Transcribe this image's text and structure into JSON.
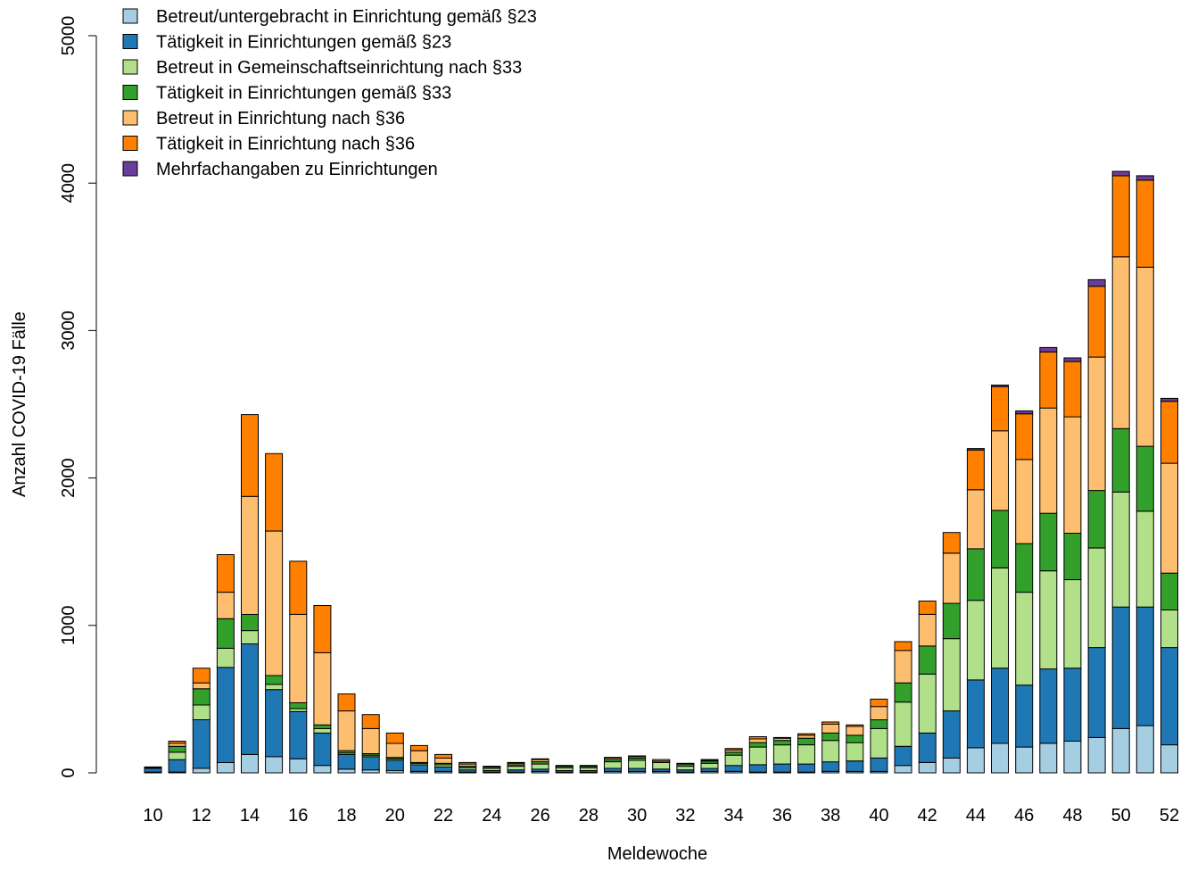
{
  "chart_data": {
    "type": "bar",
    "stacked": true,
    "xlabel": "Meldewoche",
    "ylabel": "Anzahl COVID-19 Fälle",
    "ylim": [
      0,
      5000
    ],
    "y_ticks": [
      0,
      1000,
      2000,
      3000,
      4000,
      5000
    ],
    "x_tick_labels": [
      "10",
      "12",
      "14",
      "16",
      "18",
      "20",
      "22",
      "24",
      "26",
      "28",
      "30",
      "32",
      "34",
      "36",
      "38",
      "40",
      "42",
      "44",
      "46",
      "48",
      "50",
      "52"
    ],
    "legend_position": "top-left",
    "categories": [
      10,
      11,
      12,
      13,
      14,
      15,
      16,
      17,
      18,
      19,
      20,
      21,
      22,
      23,
      24,
      25,
      26,
      27,
      28,
      29,
      30,
      31,
      32,
      33,
      34,
      35,
      36,
      37,
      38,
      39,
      40,
      41,
      42,
      43,
      44,
      45,
      46,
      47,
      48,
      49,
      50,
      51,
      52
    ],
    "series": [
      {
        "name": "Betreut/untergebracht in Einrichtung gemäß §23",
        "color": "#a6cee3",
        "values": [
          5,
          5,
          30,
          70,
          125,
          110,
          95,
          50,
          25,
          20,
          15,
          10,
          10,
          5,
          5,
          5,
          10,
          5,
          5,
          10,
          10,
          10,
          5,
          10,
          10,
          5,
          5,
          5,
          10,
          10,
          10,
          50,
          70,
          100,
          170,
          200,
          175,
          200,
          215,
          240,
          300,
          320,
          190
        ]
      },
      {
        "name": "Tätigkeit in Einrichtungen gemäß §23",
        "color": "#1f78b4",
        "values": [
          25,
          85,
          330,
          645,
          750,
          455,
          320,
          220,
          100,
          90,
          70,
          45,
          30,
          15,
          10,
          15,
          15,
          10,
          10,
          20,
          20,
          15,
          15,
          20,
          40,
          50,
          55,
          55,
          65,
          70,
          90,
          130,
          200,
          320,
          460,
          510,
          420,
          505,
          495,
          610,
          825,
          805,
          660
        ]
      },
      {
        "name": "Betreut in Gemeinschaftseinrichtung nach §33",
        "color": "#b2df8a",
        "values": [
          5,
          50,
          100,
          130,
          90,
          35,
          20,
          30,
          10,
          10,
          10,
          10,
          15,
          15,
          15,
          25,
          35,
          20,
          20,
          45,
          55,
          45,
          25,
          35,
          70,
          120,
          130,
          130,
          145,
          125,
          200,
          300,
          400,
          490,
          540,
          680,
          630,
          665,
          600,
          675,
          780,
          650,
          255
        ]
      },
      {
        "name": "Tätigkeit in Einrichtungen gemäß §33",
        "color": "#33a02c",
        "values": [
          5,
          40,
          110,
          200,
          110,
          60,
          40,
          25,
          15,
          10,
          10,
          5,
          10,
          10,
          10,
          10,
          15,
          10,
          10,
          15,
          15,
          10,
          15,
          15,
          20,
          30,
          30,
          45,
          50,
          50,
          60,
          130,
          190,
          240,
          350,
          390,
          330,
          390,
          315,
          390,
          430,
          440,
          250
        ]
      },
      {
        "name": "Betreut in Einrichtung nach §36",
        "color": "#fdbf6f",
        "values": [
          0,
          20,
          40,
          180,
          800,
          980,
          600,
          490,
          270,
          170,
          95,
          80,
          35,
          15,
          5,
          10,
          15,
          5,
          5,
          10,
          10,
          10,
          5,
          5,
          15,
          25,
          15,
          20,
          60,
          60,
          90,
          220,
          215,
          340,
          400,
          540,
          570,
          715,
          790,
          905,
          1165,
          1215,
          745
        ]
      },
      {
        "name": "Tätigkeit in Einrichtung nach §36",
        "color": "#ff7f00",
        "values": [
          0,
          15,
          100,
          255,
          555,
          525,
          360,
          320,
          115,
          95,
          70,
          35,
          25,
          10,
          0,
          5,
          5,
          0,
          0,
          5,
          5,
          0,
          0,
          5,
          10,
          15,
          5,
          10,
          15,
          10,
          50,
          60,
          90,
          140,
          270,
          300,
          310,
          380,
          375,
          480,
          550,
          590,
          420
        ]
      },
      {
        "name": "Mehrfachangaben zu Einrichtungen",
        "color": "#6a3d9a",
        "values": [
          0,
          0,
          0,
          0,
          0,
          0,
          0,
          0,
          0,
          0,
          0,
          0,
          0,
          0,
          0,
          0,
          0,
          0,
          0,
          0,
          0,
          0,
          0,
          0,
          0,
          0,
          0,
          0,
          0,
          0,
          0,
          0,
          0,
          0,
          10,
          10,
          20,
          30,
          25,
          45,
          30,
          30,
          20
        ]
      }
    ]
  }
}
